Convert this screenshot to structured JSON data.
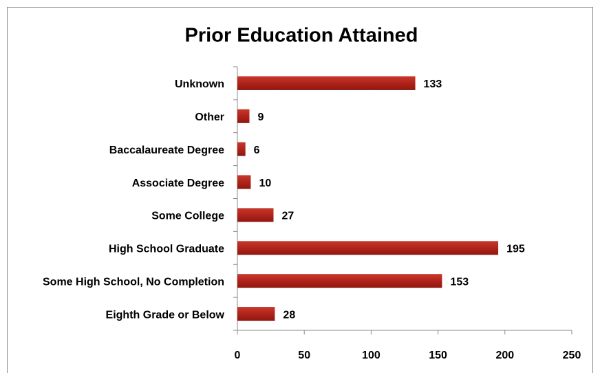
{
  "chart_data": {
    "type": "bar",
    "orientation": "horizontal",
    "title": "Prior Education Attained",
    "categories": [
      "Unknown",
      "Other",
      "Baccalaureate Degree",
      "Associate Degree",
      "Some College",
      "High School Graduate",
      "Some High School, No Completion",
      "Eighth Grade or Below"
    ],
    "values": [
      133,
      9,
      6,
      10,
      27,
      195,
      153,
      28
    ],
    "color": "#b0231a",
    "xlim": [
      0,
      250
    ],
    "xticks": [
      0,
      50,
      100,
      150,
      200,
      250
    ],
    "grid": false
  }
}
